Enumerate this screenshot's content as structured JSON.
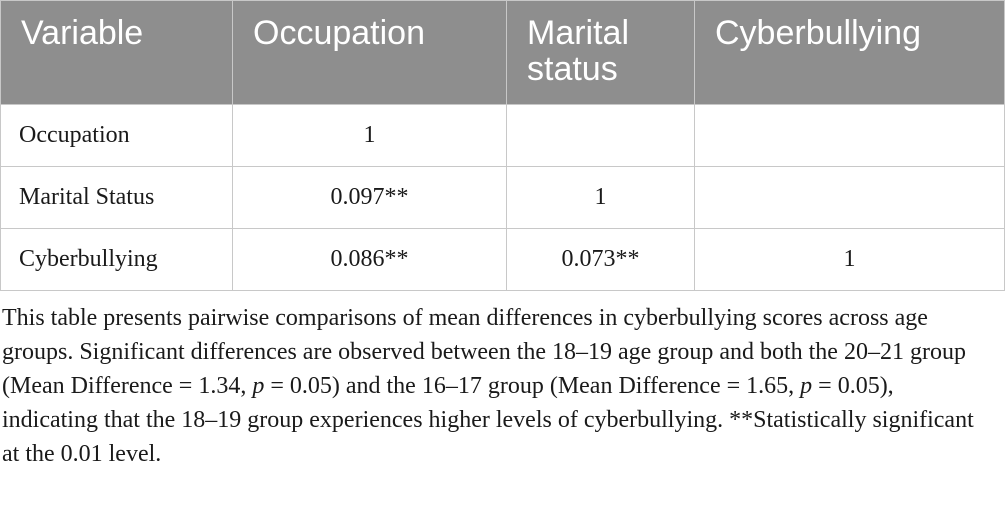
{
  "table": {
    "headers": [
      "Variable",
      "Occupation",
      "Marital status",
      "Cyberbullying"
    ],
    "rows": [
      {
        "label": "Occupation",
        "cells": [
          "1",
          "",
          ""
        ]
      },
      {
        "label": "Marital Status",
        "cells": [
          "0.097**",
          "1",
          ""
        ]
      },
      {
        "label": "Cyberbullying",
        "cells": [
          "0.086**",
          "0.073**",
          "1"
        ]
      }
    ]
  },
  "note": {
    "part1": "This table presents pairwise comparisons of mean differences in cyberbullying scores across age groups. Significant differences are observed between the 18–19 age group and both the 20–21 group (Mean Difference = 1.34, ",
    "p_symbol_1": "p",
    "part2": " = 0.05) and the 16–17 group (Mean Difference = 1.65, ",
    "p_symbol_2": "p",
    "part3": " = 0.05), indicating that the 18–19 group experiences higher levels of cyberbullying. **Statistically significant at the 0.01 level."
  }
}
